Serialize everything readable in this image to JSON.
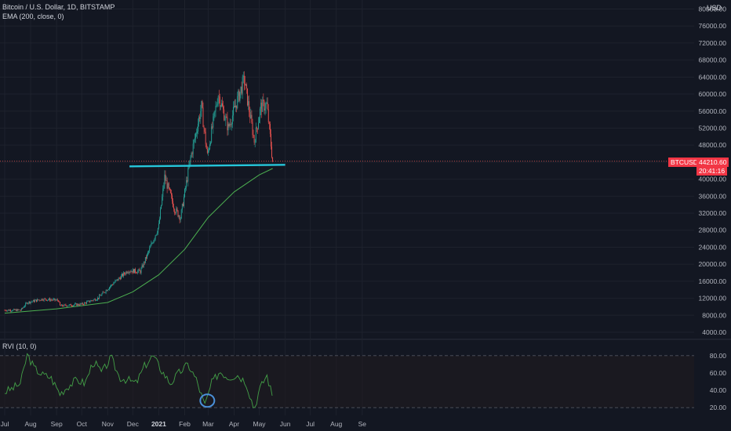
{
  "header": {
    "title": "Bitcoin / U.S. Dollar, 1D, BITSTAMP",
    "indicator": "EMA (200, close, 0)",
    "rvi_label": "RVI (10, 0)",
    "currency": "USD"
  },
  "price_panel": {
    "symbol_tag": "BTCUSD",
    "last_price": "44210.60",
    "countdown": "20:41:16"
  },
  "colors": {
    "background": "#131722",
    "up": "#26a69a",
    "down": "#ef5350",
    "ema": "#4caf50",
    "support_line": "#26c6da",
    "rvi_line": "#43a047",
    "price_tag": "#f23645",
    "circle": "#4a90d9"
  },
  "chart_data": [
    {
      "type": "candlestick",
      "title": "Bitcoin / U.S. Dollar, 1D, BITSTAMP",
      "x_ticks": [
        "Jul",
        "Aug",
        "Sep",
        "Oct",
        "Nov",
        "Dec",
        "2021",
        "Feb",
        "Mar",
        "Apr",
        "May",
        "Jun",
        "Jul",
        "Aug",
        "Se"
      ],
      "y_ticks": [
        "4000.00",
        "8000.00",
        "12000.00",
        "16000.00",
        "20000.00",
        "24000.00",
        "28000.00",
        "32000.00",
        "36000.00",
        "40000.00",
        "44000.00",
        "48000.00",
        "52000.00",
        "56000.00",
        "60000.00",
        "64000.00",
        "68000.00",
        "72000.00",
        "76000.00",
        "80000.00"
      ],
      "ylim": [
        2000,
        82000
      ],
      "price_path": [
        {
          "x": "2020-07-01",
          "y": 9200
        },
        {
          "x": "2020-07-20",
          "y": 9200
        },
        {
          "x": "2020-07-28",
          "y": 11000
        },
        {
          "x": "2020-08-15",
          "y": 11800
        },
        {
          "x": "2020-09-03",
          "y": 11500
        },
        {
          "x": "2020-09-05",
          "y": 10200
        },
        {
          "x": "2020-10-01",
          "y": 10600
        },
        {
          "x": "2020-10-20",
          "y": 12000
        },
        {
          "x": "2020-11-05",
          "y": 15000
        },
        {
          "x": "2020-11-25",
          "y": 18500
        },
        {
          "x": "2020-12-10",
          "y": 18300
        },
        {
          "x": "2020-12-20",
          "y": 23000
        },
        {
          "x": "2021-01-01",
          "y": 29000
        },
        {
          "x": "2021-01-08",
          "y": 40500
        },
        {
          "x": "2021-01-20",
          "y": 33000
        },
        {
          "x": "2021-01-27",
          "y": 31000
        },
        {
          "x": "2021-02-08",
          "y": 45000
        },
        {
          "x": "2021-02-21",
          "y": 57000
        },
        {
          "x": "2021-02-28",
          "y": 45500
        },
        {
          "x": "2021-03-13",
          "y": 60000
        },
        {
          "x": "2021-03-25",
          "y": 52000
        },
        {
          "x": "2021-04-13",
          "y": 63500
        },
        {
          "x": "2021-04-25",
          "y": 49000
        },
        {
          "x": "2021-05-03",
          "y": 57000
        },
        {
          "x": "2021-05-10",
          "y": 57500
        },
        {
          "x": "2021-05-17",
          "y": 44210
        }
      ],
      "ema_200": [
        {
          "x": "2020-07-01",
          "y": 8500
        },
        {
          "x": "2020-09-01",
          "y": 9500
        },
        {
          "x": "2020-11-01",
          "y": 11000
        },
        {
          "x": "2020-12-01",
          "y": 13500
        },
        {
          "x": "2021-01-01",
          "y": 17500
        },
        {
          "x": "2021-02-01",
          "y": 23500
        },
        {
          "x": "2021-03-01",
          "y": 31000
        },
        {
          "x": "2021-04-01",
          "y": 37000
        },
        {
          "x": "2021-05-01",
          "y": 41000
        },
        {
          "x": "2021-05-17",
          "y": 42500
        }
      ],
      "support_line": {
        "from": "2020-11-27",
        "to": "2021-06-01",
        "y": 43000
      }
    },
    {
      "type": "line",
      "title": "RVI (10, 0)",
      "y_ticks": [
        "20.00",
        "40.00",
        "60.00",
        "80.00"
      ],
      "ylim": [
        12,
        92
      ],
      "bands": [
        20,
        80
      ],
      "x": [
        "2020-07-01",
        "2020-07-10",
        "2020-07-20",
        "2020-07-28",
        "2020-08-05",
        "2020-08-15",
        "2020-08-25",
        "2020-09-05",
        "2020-09-15",
        "2020-09-25",
        "2020-10-05",
        "2020-10-15",
        "2020-10-25",
        "2020-11-05",
        "2020-11-15",
        "2020-11-25",
        "2020-12-05",
        "2020-12-15",
        "2020-12-25",
        "2021-01-05",
        "2021-01-15",
        "2021-01-25",
        "2021-02-05",
        "2021-02-15",
        "2021-02-25",
        "2021-03-05",
        "2021-03-15",
        "2021-03-25",
        "2021-04-05",
        "2021-04-15",
        "2021-04-25",
        "2021-05-01",
        "2021-05-10",
        "2021-05-17"
      ],
      "values": [
        38,
        42,
        48,
        82,
        66,
        58,
        55,
        36,
        45,
        52,
        48,
        74,
        60,
        78,
        55,
        52,
        48,
        68,
        80,
        62,
        48,
        60,
        70,
        52,
        22,
        48,
        62,
        55,
        58,
        50,
        18,
        40,
        58,
        32
      ],
      "highlight": {
        "x": "2021-02-28",
        "y": 28
      }
    }
  ]
}
